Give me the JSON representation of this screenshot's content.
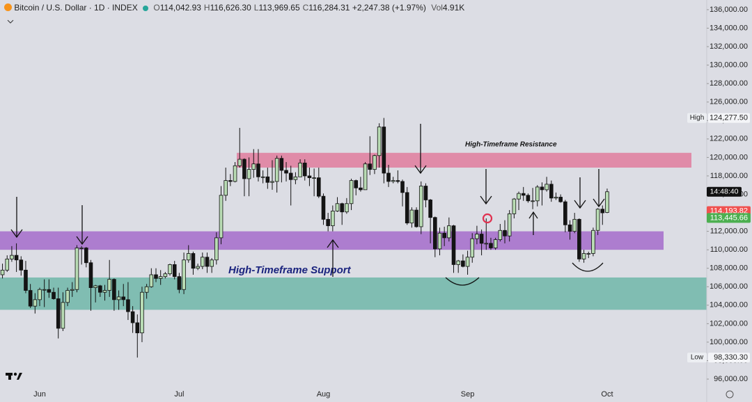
{
  "header": {
    "symbol": "Bitcoin / U.S. Dollar · 1D · INDEX",
    "ohlc": [
      {
        "label": "O",
        "value": "114,042.93"
      },
      {
        "label": "H",
        "value": "116,626.30"
      },
      {
        "label": "L",
        "value": "113,969.65"
      },
      {
        "label": "C",
        "value": "116,284.31"
      }
    ],
    "change": "+2,247.38 (+1.97%)",
    "volume_label": "Vol",
    "volume": "4.91K"
  },
  "chart_data": {
    "type": "candlestick",
    "categories": [
      null,
      null,
      null,
      null,
      null,
      null,
      null,
      null,
      "Jun",
      null,
      null,
      null,
      null,
      null,
      null,
      null,
      null,
      null,
      null,
      null,
      null,
      null,
      null,
      null,
      null,
      null,
      null,
      null,
      null,
      null,
      null,
      null,
      null,
      null,
      null,
      null,
      null,
      null,
      "Jul",
      null,
      null,
      null,
      null,
      null,
      null,
      null,
      null,
      null,
      null,
      null,
      null,
      null,
      null,
      null,
      null,
      null,
      null,
      null,
      null,
      null,
      null,
      null,
      null,
      null,
      null,
      null,
      null,
      null,
      null,
      "Aug",
      null,
      null,
      null,
      null,
      null,
      null,
      null,
      null,
      null,
      null,
      null,
      null,
      null,
      null,
      null,
      null,
      null,
      null,
      null,
      null,
      null,
      null,
      null,
      null,
      null,
      null,
      null,
      null,
      null,
      null,
      "Sep",
      null,
      null,
      null,
      null,
      null,
      null,
      null,
      null,
      null,
      null,
      null,
      null,
      null,
      null,
      null,
      null,
      null,
      null,
      null,
      null,
      null,
      null,
      null,
      null,
      null,
      null,
      null,
      null,
      null,
      "Oct"
    ],
    "open": [
      107300,
      107800,
      109000,
      109400,
      108900,
      107800,
      105600,
      103900,
      104600,
      105700,
      105700,
      105400,
      104700,
      101500,
      104300,
      105600,
      105700,
      110200,
      110200,
      108600,
      105900,
      106100,
      105400,
      105600,
      106800,
      104600,
      104900,
      104600,
      103300,
      102100,
      101000,
      105400,
      106000,
      107300,
      106900,
      107100,
      107400,
      108400,
      107100,
      105700,
      108900,
      109600,
      108000,
      108200,
      109200,
      108200,
      108900,
      111300,
      115900,
      117500,
      117400,
      119100,
      119800,
      117700,
      118700,
      119300,
      117900,
      117900,
      117300,
      117400,
      119900,
      118600,
      118300,
      117600,
      117900,
      119400,
      118000,
      117800,
      117800,
      115800,
      113300,
      112600,
      114200,
      115000,
      114100,
      115000,
      117500,
      116700,
      116500,
      119300,
      118700,
      120200,
      123300,
      118300,
      117400,
      117500,
      117400,
      116200,
      112900,
      114300,
      112500,
      116900,
      115400,
      113500,
      110100,
      111800,
      111300,
      112600,
      108400,
      108800,
      108200,
      109200,
      111200,
      111700,
      110700,
      110700,
      110200,
      111100,
      112100,
      111500,
      113900,
      115500,
      116100,
      115900,
      115300,
      115300,
      116800,
      116500,
      117100,
      115600,
      115700,
      115200,
      112700,
      112000,
      113300,
      109000,
      109600,
      109600,
      112100,
      114400,
      114042.93
    ],
    "high": [
      108500,
      109400,
      110400,
      110700,
      109300,
      108800,
      106300,
      105300,
      105900,
      106800,
      106800,
      105900,
      105900,
      105400,
      105900,
      106500,
      110500,
      110400,
      110300,
      108900,
      106200,
      106200,
      106200,
      108900,
      106900,
      105600,
      106300,
      106500,
      103900,
      103000,
      106000,
      106300,
      108000,
      108000,
      107800,
      107600,
      108500,
      108800,
      107500,
      109700,
      110500,
      109800,
      108500,
      109700,
      109700,
      109100,
      111900,
      116900,
      118900,
      118200,
      119500,
      123200,
      119900,
      120000,
      120900,
      120900,
      118600,
      118900,
      119700,
      120200,
      120200,
      119500,
      119100,
      118400,
      119800,
      119800,
      118900,
      118800,
      118900,
      116100,
      114000,
      114800,
      115700,
      115100,
      115600,
      117700,
      117600,
      117900,
      119500,
      122300,
      120300,
      123700,
      124277.5,
      119200,
      117900,
      118600,
      117600,
      116800,
      114600,
      114600,
      117400,
      117200,
      115500,
      113600,
      112400,
      112500,
      113500,
      112700,
      108900,
      109500,
      109900,
      111800,
      112600,
      112200,
      113400,
      111300,
      111300,
      112800,
      113200,
      114300,
      115600,
      116300,
      116800,
      116100,
      116700,
      117000,
      117300,
      117900,
      117500,
      116200,
      116000,
      115400,
      113200,
      114000,
      113400,
      110000,
      109800,
      112400,
      114500,
      114800,
      116626.3
    ],
    "low": [
      106900,
      107600,
      108700,
      107600,
      107200,
      105300,
      103700,
      103100,
      103900,
      103800,
      104800,
      104600,
      100400,
      101200,
      103900,
      104900,
      105400,
      108400,
      108100,
      103400,
      104300,
      104900,
      104500,
      104900,
      103400,
      103500,
      103900,
      102400,
      101000,
      98330.3,
      100000,
      104700,
      105900,
      106500,
      106200,
      106900,
      107200,
      106800,
      105300,
      105200,
      108600,
      107300,
      107800,
      107900,
      107500,
      107500,
      108400,
      110600,
      115300,
      116900,
      117300,
      118900,
      115800,
      115800,
      117800,
      117400,
      117200,
      116600,
      116500,
      116200,
      117300,
      117400,
      114800,
      117100,
      117900,
      117500,
      116900,
      115800,
      115600,
      112700,
      112000,
      112000,
      114100,
      112700,
      113900,
      114300,
      115900,
      116300,
      116500,
      118100,
      118200,
      118900,
      117200,
      116800,
      117200,
      117200,
      114700,
      112700,
      112400,
      112400,
      111700,
      114600,
      110700,
      109200,
      109400,
      110400,
      110900,
      107500,
      107500,
      108100,
      107300,
      108600,
      110600,
      109400,
      110000,
      110000,
      110000,
      110900,
      110700,
      110900,
      113400,
      114300,
      115300,
      115100,
      114400,
      114700,
      114800,
      116300,
      115200,
      115400,
      115100,
      111900,
      111100,
      111800,
      108700,
      108600,
      109100,
      109300,
      111600,
      112700,
      113969.65
    ],
    "close": [
      107800,
      109000,
      109400,
      108900,
      107800,
      105600,
      103900,
      104600,
      105700,
      105700,
      105400,
      104700,
      101500,
      104300,
      105600,
      105700,
      110200,
      110200,
      108600,
      105900,
      106100,
      105400,
      105600,
      106800,
      104600,
      104900,
      104600,
      103300,
      102100,
      101000,
      105400,
      106000,
      107300,
      106900,
      107100,
      107400,
      108400,
      107100,
      105700,
      108900,
      109600,
      108000,
      108200,
      109200,
      108200,
      108900,
      111300,
      115900,
      117500,
      117400,
      119100,
      119800,
      117700,
      118700,
      119300,
      117900,
      117900,
      117300,
      117400,
      119900,
      118600,
      118300,
      117600,
      117900,
      119400,
      118000,
      117800,
      117800,
      115800,
      113300,
      112600,
      114200,
      115000,
      114100,
      115000,
      117500,
      116700,
      116500,
      119300,
      118700,
      120200,
      123300,
      118300,
      117400,
      117500,
      117400,
      116200,
      112900,
      114300,
      112500,
      116900,
      115400,
      113500,
      110100,
      111800,
      111300,
      112600,
      108400,
      108800,
      108200,
      109200,
      111200,
      111700,
      110700,
      110700,
      110200,
      111100,
      112100,
      111500,
      113900,
      115500,
      116100,
      115900,
      115300,
      115300,
      116800,
      116500,
      117100,
      115600,
      115700,
      115200,
      112700,
      112000,
      113300,
      109000,
      109600,
      109600,
      112100,
      114400,
      114000,
      116284.31
    ],
    "up_color": "#b9dcb4",
    "down_color": "#141414",
    "ylim": [
      95250,
      137050
    ],
    "yticks": [
      {
        "value": 96000,
        "label": "96,000.00"
      },
      {
        "value": 98000,
        "label": "98,000.00"
      },
      {
        "value": 100000,
        "label": "100,000.00"
      },
      {
        "value": 102000,
        "label": "102,000.00"
      },
      {
        "value": 104000,
        "label": "104,000.00"
      },
      {
        "value": 106000,
        "label": "106,000.00"
      },
      {
        "value": 108000,
        "label": "108,000.00"
      },
      {
        "value": 110000,
        "label": "110,000.00"
      },
      {
        "value": 112000,
        "label": "112,000.00"
      },
      {
        "value": 114000,
        "label": "114,000.00"
      },
      {
        "value": 116000,
        "label": "116,000.00"
      },
      {
        "value": 118000,
        "label": "118,000.00"
      },
      {
        "value": 120000,
        "label": "120,000.00"
      },
      {
        "value": 122000,
        "label": "122,000.00"
      },
      {
        "value": 124000,
        "label": "124,000.00"
      },
      {
        "value": 126000,
        "label": "126,000.00"
      },
      {
        "value": 128000,
        "label": "128,000.00"
      },
      {
        "value": 130000,
        "label": "130,000.00"
      },
      {
        "value": 132000,
        "label": "132,000.00"
      },
      {
        "value": 134000,
        "label": "134,000.00"
      },
      {
        "value": 136000,
        "label": "136,000.00"
      }
    ],
    "zones": [
      {
        "label": "High-Timeframe Resistance",
        "from": 118900,
        "to": 120500,
        "color": "#e07c9e"
      },
      {
        "from": 110000,
        "to": 112000,
        "color": "#a56ccb"
      },
      {
        "label": "High-Timeframe Support",
        "from": 103500,
        "to": 107000,
        "color": "#70b7a9"
      }
    ],
    "extremes": [
      {
        "name": "High",
        "label": "124,277.50",
        "value": 124277.5
      },
      {
        "name": "Low",
        "label": "98,330.30",
        "value": 98330.3
      }
    ],
    "price_tags": [
      {
        "label": "114,193.82",
        "value": 114193.82,
        "color": "#f0514f"
      },
      {
        "label": "113,445.66",
        "value": 113445.66,
        "color": "#4caf50"
      }
    ],
    "countdown": "14:48:40"
  }
}
